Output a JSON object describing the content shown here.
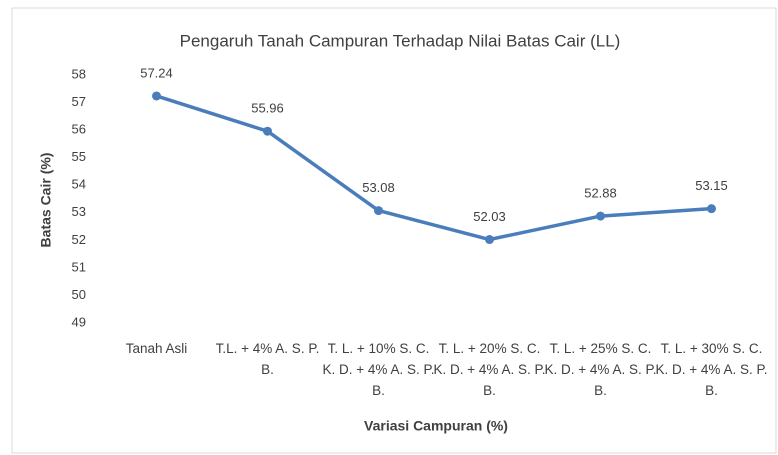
{
  "chart_data": {
    "type": "line",
    "title": "Pengaruh Tanah Campuran Terhadap Nilai Batas Cair (LL)",
    "x_label": "Variasi Campuran (%)",
    "y_label": "Batas Cair (%)",
    "categories": [
      "Tanah Asli",
      "T.L. + 4% A. S. P. B.",
      "T. L. + 10% S. C. K. D. + 4% A. S. P. B.",
      "T. L. + 20% S. C. K. D. + 4% A. S. P. B.",
      "T. L. + 25% S. C. K. D. + 4% A. S. P. B.",
      "T. L. + 30% S. C. K. D. + 4% A. S. P. B."
    ],
    "values": [
      57.24,
      55.96,
      53.08,
      52.03,
      52.88,
      53.15
    ],
    "color": "#4a7ebb",
    "ylim": [
      49,
      58
    ],
    "yticks": [
      49,
      50,
      51,
      52,
      53,
      54,
      55,
      56,
      57,
      58
    ],
    "grid": false
  }
}
